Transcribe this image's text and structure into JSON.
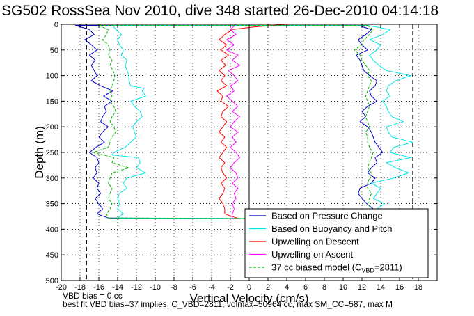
{
  "title": "SG502 RossSea Nov 2010, dive 348 started 26-Dec-2010 04:14:18",
  "footer": {
    "line1": "VBD bias = 0 cc",
    "line2": "best fit VBD bias=37 implies: C_VBD=2811, volmax=50964 cc, max SM_CC=587, max M"
  },
  "chart_data": {
    "type": "line",
    "xlabel": "Vertical Velocity (cm/s)",
    "ylabel": "Depth (m)",
    "xlim": [
      -20,
      20
    ],
    "ylim": [
      500,
      0
    ],
    "y_reversed": true,
    "x_ticks": [
      -20,
      -18,
      -16,
      -14,
      -12,
      -10,
      -8,
      -6,
      -4,
      -2,
      0,
      2,
      4,
      6,
      8,
      10,
      12,
      14,
      16,
      18
    ],
    "y_ticks": [
      0,
      50,
      100,
      150,
      200,
      250,
      300,
      350,
      400,
      450,
      500
    ],
    "grid": true,
    "grid_style": "dotted",
    "legend_position": "bottom-right",
    "reference_lines": {
      "solid_vertical_x": 0,
      "dashed_vertical_x": [
        -17.3,
        17.4
      ],
      "dash_color": "#000000"
    },
    "series": [
      {
        "name": "Based on Pressure Change",
        "color": "#0000cc",
        "style": "solid",
        "descent": {
          "depth": [
            2,
            10,
            20,
            30,
            40,
            50,
            60,
            70,
            80,
            90,
            100,
            110,
            120,
            130,
            140,
            150,
            160,
            170,
            180,
            190,
            200,
            210,
            220,
            230,
            240,
            250,
            260,
            270,
            280,
            290,
            300,
            310,
            320,
            330,
            340,
            350,
            360,
            370,
            378
          ],
          "value": [
            -18.5,
            -17.0,
            -16.5,
            -17.5,
            -16.8,
            -16.2,
            -17.0,
            -16.4,
            -16.8,
            -16.5,
            -16.2,
            -16.8,
            -15.8,
            -14.5,
            -15.5,
            -14.6,
            -15.4,
            -15.2,
            -15.6,
            -15.8,
            -15.0,
            -15.6,
            -16.0,
            -15.4,
            -16.3,
            -17.0,
            -16.2,
            -16.0,
            -16.4,
            -16.2,
            -16.6,
            -16.0,
            -16.2,
            -15.8,
            -16.4,
            -16.0,
            -15.6,
            -16.2,
            -15.0
          ]
        },
        "ascent": {
          "depth": [
            380,
            370,
            360,
            350,
            340,
            330,
            320,
            310,
            300,
            290,
            280,
            270,
            260,
            250,
            240,
            230,
            220,
            210,
            200,
            190,
            180,
            170,
            160,
            150,
            140,
            130,
            120,
            110,
            100,
            90,
            80,
            70,
            60,
            50,
            40,
            30,
            20,
            10,
            2
          ],
          "value": [
            12.6,
            12.8,
            13.2,
            12.5,
            12.0,
            11.6,
            11.8,
            13.0,
            13.4,
            12.6,
            13.0,
            13.6,
            13.4,
            14.2,
            13.8,
            13.4,
            13.2,
            13.0,
            12.6,
            11.8,
            12.4,
            12.0,
            12.6,
            13.6,
            13.0,
            12.8,
            13.4,
            13.6,
            12.8,
            12.2,
            12.0,
            11.8,
            11.4,
            12.6,
            12.0,
            11.6,
            12.4,
            13.0,
            11.6
          ]
        }
      },
      {
        "name": "Based on Buoyancy and Pitch",
        "color": "#00e5e5",
        "style": "solid",
        "descent": {
          "depth": [
            2,
            10,
            20,
            30,
            40,
            50,
            60,
            70,
            80,
            90,
            100,
            110,
            120,
            125,
            130,
            140,
            150,
            160,
            170,
            180,
            190,
            200,
            210,
            220,
            230,
            240,
            250,
            255,
            260,
            270,
            280,
            290,
            300,
            310,
            320,
            330,
            340,
            350,
            360,
            370,
            378
          ],
          "value": [
            -14.5,
            -14.2,
            -13.6,
            -14.0,
            -13.8,
            -13.4,
            -13.6,
            -13.0,
            -13.2,
            -13.0,
            -12.8,
            -12.8,
            -12.6,
            -11.2,
            -11.4,
            -11.0,
            -12.6,
            -12.2,
            -11.6,
            -11.4,
            -12.0,
            -12.4,
            -12.2,
            -12.0,
            -12.6,
            -13.2,
            -14.4,
            -14.6,
            -11.8,
            -11.6,
            -12.0,
            -11.0,
            -13.0,
            -13.4,
            -13.0,
            -13.8,
            -14.0,
            -13.8,
            -14.0,
            -13.4,
            -14.0
          ]
        },
        "ascent": {
          "depth": [
            380,
            370,
            360,
            350,
            340,
            330,
            320,
            310,
            300,
            290,
            280,
            270,
            260,
            250,
            240,
            230,
            220,
            210,
            200,
            190,
            180,
            170,
            160,
            150,
            140,
            130,
            120,
            110,
            100,
            90,
            80,
            70,
            60,
            50,
            40,
            30,
            20,
            10,
            2
          ],
          "value": [
            13.8,
            14.2,
            13.6,
            14.4,
            13.2,
            13.6,
            14.0,
            13.0,
            15.4,
            17.0,
            15.6,
            14.6,
            17.2,
            15.0,
            15.4,
            17.4,
            15.2,
            14.8,
            14.6,
            16.4,
            15.2,
            14.8,
            14.6,
            14.2,
            15.0,
            14.6,
            14.8,
            15.6,
            17.2,
            14.6,
            13.8,
            13.2,
            12.8,
            13.6,
            14.0,
            12.8,
            14.2,
            15.0,
            12.6
          ]
        }
      },
      {
        "name": "Upwelling on Descent",
        "color": "#ff0000",
        "style": "solid",
        "depth": [
          0,
          5,
          10,
          20,
          30,
          40,
          50,
          60,
          70,
          80,
          90,
          100,
          110,
          120,
          130,
          140,
          150,
          160,
          170,
          180,
          190,
          200,
          210,
          220,
          230,
          240,
          250,
          260,
          270,
          280,
          290,
          300,
          310,
          320,
          330,
          340,
          350,
          360,
          370,
          380
        ],
        "value": [
          4.0,
          0.5,
          -1.8,
          -2.6,
          -3.2,
          -2.4,
          -3.0,
          -2.2,
          -3.0,
          -2.5,
          -3.2,
          -2.6,
          -3.0,
          -2.4,
          -3.4,
          -2.8,
          -3.0,
          -2.2,
          -2.8,
          -3.0,
          -2.4,
          -2.8,
          -3.2,
          -2.6,
          -3.0,
          -2.4,
          -2.8,
          -3.2,
          -2.6,
          -3.0,
          -2.8,
          -2.4,
          -3.0,
          -2.6,
          -2.8,
          -3.2,
          -2.8,
          -2.6,
          -2.6,
          -1.0
        ]
      },
      {
        "name": "Upwelling on Ascent",
        "color": "#ff00ff",
        "style": "solid",
        "depth": [
          0,
          10,
          20,
          30,
          40,
          50,
          60,
          70,
          80,
          90,
          100,
          110,
          120,
          130,
          140,
          150,
          160,
          170,
          180,
          190,
          200,
          210,
          220,
          230,
          240,
          250,
          260,
          270,
          280,
          290,
          300,
          310,
          320,
          330,
          340,
          350,
          360,
          370,
          380
        ],
        "value": [
          -1.4,
          -2.0,
          -1.4,
          -2.4,
          -1.6,
          -2.4,
          -1.2,
          -1.8,
          -1.0,
          -2.2,
          -1.6,
          -1.2,
          -2.0,
          -1.6,
          -2.4,
          -1.8,
          -1.2,
          -1.8,
          -1.0,
          -1.6,
          -2.0,
          -1.2,
          -1.8,
          -1.4,
          -2.0,
          -1.4,
          -1.0,
          -1.6,
          -2.0,
          -1.4,
          -1.2,
          -1.8,
          -1.2,
          -1.6,
          -1.4,
          -1.8,
          -1.6,
          -1.8,
          -1.8
        ]
      },
      {
        "name": "37 cc biased model (C",
        "name_sub": "VBD",
        "name_tail": "=2811)",
        "color": "#00bb00",
        "style": "dashed",
        "descent": {
          "depth": [
            2,
            10,
            20,
            30,
            40,
            50,
            60,
            70,
            80,
            90,
            100,
            110,
            120,
            130,
            140,
            150,
            160,
            170,
            180,
            190,
            200,
            210,
            220,
            230,
            240,
            250,
            260,
            270,
            280,
            290,
            300,
            310,
            320,
            330,
            340,
            350,
            360,
            370,
            378
          ],
          "value": [
            -16.0,
            -15.0,
            -15.2,
            -15.6,
            -15.0,
            -14.8,
            -15.0,
            -14.6,
            -14.8,
            -14.5,
            -14.3,
            -14.4,
            -14.6,
            -14.8,
            -14.6,
            -14.8,
            -14.4,
            -14.2,
            -14.6,
            -14.8,
            -14.4,
            -14.2,
            -14.6,
            -14.8,
            -15.0,
            -16.6,
            -14.4,
            -14.6,
            -12.8,
            -14.6,
            -14.8,
            -15.0,
            -14.6,
            -14.8,
            -15.0,
            -14.6,
            -14.8,
            -15.2,
            -15.0
          ]
        },
        "ascent": {
          "depth": [
            380,
            370,
            360,
            350,
            340,
            330,
            320,
            310,
            300,
            290,
            280,
            270,
            260,
            250,
            240,
            230,
            220,
            210,
            200,
            190,
            180,
            170,
            160,
            150,
            140,
            130,
            120,
            110,
            100,
            90,
            80,
            70,
            60,
            50,
            40,
            30,
            20,
            10,
            2
          ],
          "value": [
            13.0,
            12.8,
            13.0,
            12.6,
            12.8,
            13.0,
            12.6,
            12.6,
            12.8,
            13.0,
            12.6,
            12.8,
            13.0,
            13.2,
            12.8,
            12.6,
            12.6,
            12.4,
            12.8,
            12.6,
            12.4,
            12.6,
            12.8,
            12.6,
            12.4,
            12.6,
            12.8,
            13.0,
            12.6,
            12.8,
            12.4,
            12.0,
            11.8,
            11.2,
            12.0,
            12.2,
            12.8,
            13.2,
            12.6
          ]
        }
      }
    ]
  }
}
